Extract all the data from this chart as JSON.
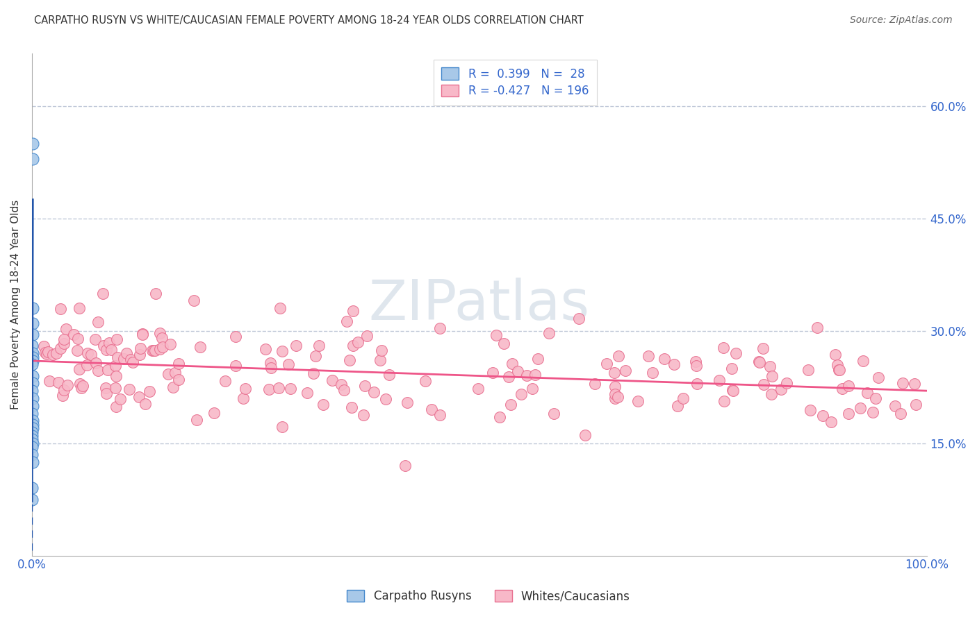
{
  "title": "CARPATHO RUSYN VS WHITE/CAUCASIAN FEMALE POVERTY AMONG 18-24 YEAR OLDS CORRELATION CHART",
  "source": "Source: ZipAtlas.com",
  "ylabel": "Female Poverty Among 18-24 Year Olds",
  "xlim": [
    0,
    100
  ],
  "ylim": [
    0,
    67
  ],
  "watermark_zip": "ZIP",
  "watermark_atlas": "atlas",
  "legend_blue_r": "0.399",
  "legend_blue_n": "28",
  "legend_pink_r": "-0.427",
  "legend_pink_n": "196",
  "blue_face_color": "#a8c8e8",
  "blue_edge_color": "#4488cc",
  "pink_face_color": "#f8b8c8",
  "pink_edge_color": "#e87090",
  "blue_line_color": "#2255aa",
  "pink_line_color": "#ee5588",
  "grid_color": "#c0c8d8",
  "spine_color": "#aaaaaa",
  "label_color": "#3366cc",
  "text_color": "#333333",
  "source_color": "#666666"
}
